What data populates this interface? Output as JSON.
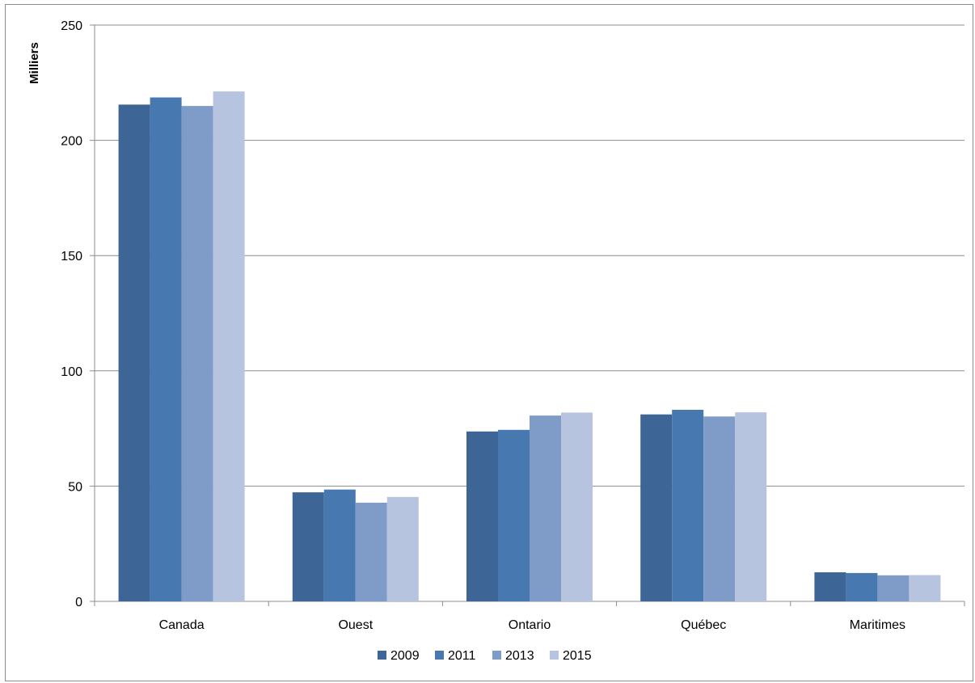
{
  "chart_data": {
    "type": "bar",
    "title": "",
    "xlabel": "",
    "ylabel": "Milliers",
    "ylim": [
      0,
      250
    ],
    "yticks": [
      0,
      50,
      100,
      150,
      200,
      250
    ],
    "grid": true,
    "legend_position": "bottom",
    "categories": [
      "Canada",
      "Ouest",
      "Ontario",
      "Québec",
      "Maritimes"
    ],
    "series": [
      {
        "name": "2009",
        "color": "#3d6595",
        "values": [
          215.5,
          47.3,
          73.7,
          81.1,
          12.6
        ]
      },
      {
        "name": "2011",
        "color": "#4878b0",
        "values": [
          218.6,
          48.5,
          74.4,
          83.1,
          12.3
        ]
      },
      {
        "name": "2013",
        "color": "#7f9cc9",
        "values": [
          214.9,
          42.8,
          80.6,
          80.2,
          11.3
        ]
      },
      {
        "name": "2015",
        "color": "#b6c4e0",
        "values": [
          221.2,
          45.3,
          81.9,
          82.0,
          11.4
        ]
      }
    ]
  }
}
